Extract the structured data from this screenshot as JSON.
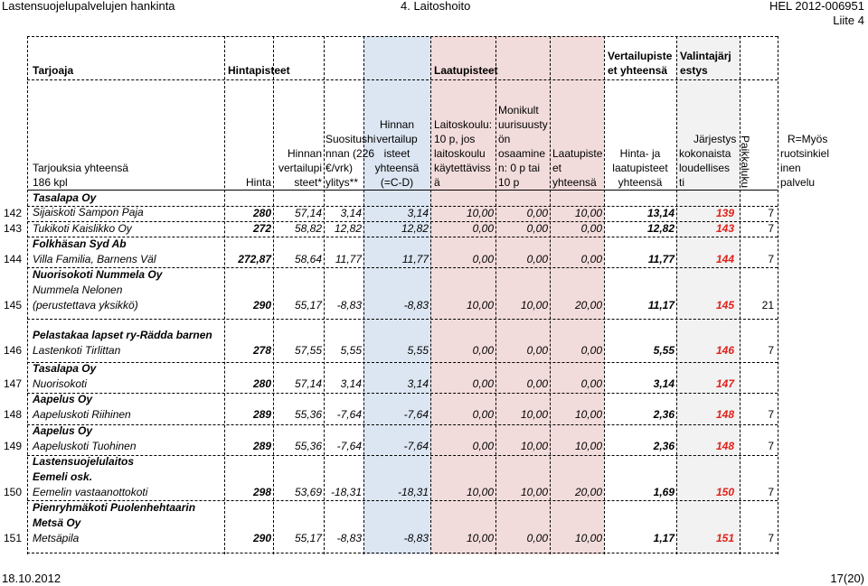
{
  "top": {
    "left": "Lastensuojelupalvelujen hankinta",
    "center": "4. Laitoshoito",
    "right_ref": "HEL 2012-006951",
    "right_appendix": "Liite 4"
  },
  "colors": {
    "blue_band": "#dce6f2",
    "pink_band": "#f2dcdb",
    "gray_band": "#f2f2f2",
    "rank_red": "#e0211a"
  },
  "group_headers": {
    "tarjoaja": "Tarjoaja",
    "hintapisteet": "Hintapisteet",
    "laatupisteet": "Laatupisteet",
    "vertailupisteet": [
      "Vertailupiste",
      "et yhteensä"
    ],
    "valintajarjestys": [
      "Valintajärj",
      "estys"
    ]
  },
  "columns": {
    "tarjouksia": [
      "Tarjouksia yhteensä",
      "186 kpl"
    ],
    "hinta": [
      "Hinta"
    ],
    "hinnan_vertailupisteet": [
      "Hinnan",
      "vertailupi",
      "steet*"
    ],
    "suositushinnan": [
      "Suositushi",
      "nnan (226",
      "€/vrk)",
      "ylitys**"
    ],
    "hinnan_vertailup_yhteensa": [
      "Hinnan",
      "vertailup",
      "isteet",
      "yhteensä",
      "(=C-D)"
    ],
    "laitoskoulu": [
      "Laitoskoulu:",
      "10 p, jos",
      "laitoskoulu",
      "käytettäviss",
      "ä"
    ],
    "monikulttuurisuus": [
      "Monikult",
      "uurisuusty",
      "ön",
      "osaamine",
      "n: 0 p tai",
      "10 p"
    ],
    "laatupisteet_yhteensa": [
      "Laatupiste",
      "et",
      "yhteensä"
    ],
    "hinta_ja_laatu": [
      "Hinta- ja",
      "laatupisteet",
      "yhteensä"
    ],
    "jarjestys": [
      "Järjestys",
      "kokonaista",
      "loudellises",
      "ti"
    ],
    "paikkaluku": "Paikkaluku",
    "ruotsinkielinen": [
      "R=Myös",
      "ruotsinkiel",
      "inen",
      "palvelu"
    ]
  },
  "rows": [
    {
      "num": "142",
      "names": [
        "Tasalapa Oy",
        "Sijaiskoti Sampon Paja"
      ],
      "hinta": "280",
      "hvp": "57,14",
      "ylitys": "3,14",
      "hvy": "3,14",
      "lk": "10,00",
      "mk": "0,00",
      "lpy": "10,00",
      "hl": "13,14",
      "rank": "139",
      "pk": "7"
    },
    {
      "num": "143",
      "names": [
        "Tukikoti Kaislikko Oy"
      ],
      "hinta": "272",
      "hvp": "58,82",
      "ylitys": "12,82",
      "hvy": "12,82",
      "lk": "0,00",
      "mk": "0,00",
      "lpy": "0,00",
      "hl": "12,82",
      "rank": "143",
      "pk": "7"
    },
    {
      "num": "144",
      "names": [
        "Folkhäsan Syd Ab",
        "Villa Familia, Barnens Väl"
      ],
      "hinta": "272,87",
      "hvp": "58,64",
      "ylitys": "11,77",
      "hvy": "11,77",
      "lk": "0,00",
      "mk": "0,00",
      "lpy": "0,00",
      "hl": "11,77",
      "rank": "144",
      "pk": "7"
    },
    {
      "num": "145",
      "names": [
        "Nuorisokoti Nummela Oy",
        "Nummela Nelonen",
        "(perustettava yksikkö)"
      ],
      "hinta": "290",
      "hvp": "55,17",
      "ylitys": "-8,83",
      "hvy": "-8,83",
      "lk": "10,00",
      "mk": "10,00",
      "lpy": "20,00",
      "hl": "11,17",
      "rank": "145",
      "pk": "21"
    },
    {
      "num": "146",
      "names": [
        "Pelastakaa lapset ry-Rädda barnen",
        "Lastenkoti Tirlittan"
      ],
      "hinta": "278",
      "hvp": "57,55",
      "ylitys": "5,55",
      "hvy": "5,55",
      "lk": "0,00",
      "mk": "0,00",
      "lpy": "0,00",
      "hl": "5,55",
      "rank": "146",
      "pk": "7"
    },
    {
      "num": "147",
      "names": [
        "Tasalapa Oy",
        "Nuorisokoti"
      ],
      "hinta": "280",
      "hvp": "57,14",
      "ylitys": "3,14",
      "hvy": "3,14",
      "lk": "0,00",
      "mk": "0,00",
      "lpy": "0,00",
      "hl": "3,14",
      "rank": "147",
      "pk": ""
    },
    {
      "num": "148",
      "names": [
        "Aapelus Oy",
        "Aapeluskoti Riihinen"
      ],
      "hinta": "289",
      "hvp": "55,36",
      "ylitys": "-7,64",
      "hvy": "-7,64",
      "lk": "0,00",
      "mk": "10,00",
      "lpy": "10,00",
      "hl": "2,36",
      "rank": "148",
      "pk": "7"
    },
    {
      "num": "149",
      "names": [
        "Aapelus Oy",
        "Aapeluskoti Tuohinen"
      ],
      "hinta": "289",
      "hvp": "55,36",
      "ylitys": "-7,64",
      "hvy": "-7,64",
      "lk": "0,00",
      "mk": "10,00",
      "lpy": "10,00",
      "hl": "2,36",
      "rank": "148",
      "pk": "7"
    },
    {
      "num": "150",
      "names": [
        "Lastensuojelulaitos",
        "Eemeli osk.",
        "Eemelin vastaanottokoti"
      ],
      "hinta": "298",
      "hvp": "53,69",
      "ylitys": "-18,31",
      "hvy": "-18,31",
      "lk": "10,00",
      "mk": "10,00",
      "lpy": "20,00",
      "hl": "1,69",
      "rank": "150",
      "pk": "7"
    },
    {
      "num": "151",
      "names": [
        "Pienryhmäkoti Puolenhehtaarin",
        "Metsä Oy",
        "Metsäpila"
      ],
      "hinta": "290",
      "hvp": "55,17",
      "ylitys": "-8,83",
      "hvy": "-8,83",
      "lk": "10,00",
      "mk": "0,00",
      "lpy": "10,00",
      "hl": "1,17",
      "rank": "151",
      "pk": "7"
    }
  ],
  "footer": {
    "date": "18.10.2012",
    "page": "17(20)"
  }
}
